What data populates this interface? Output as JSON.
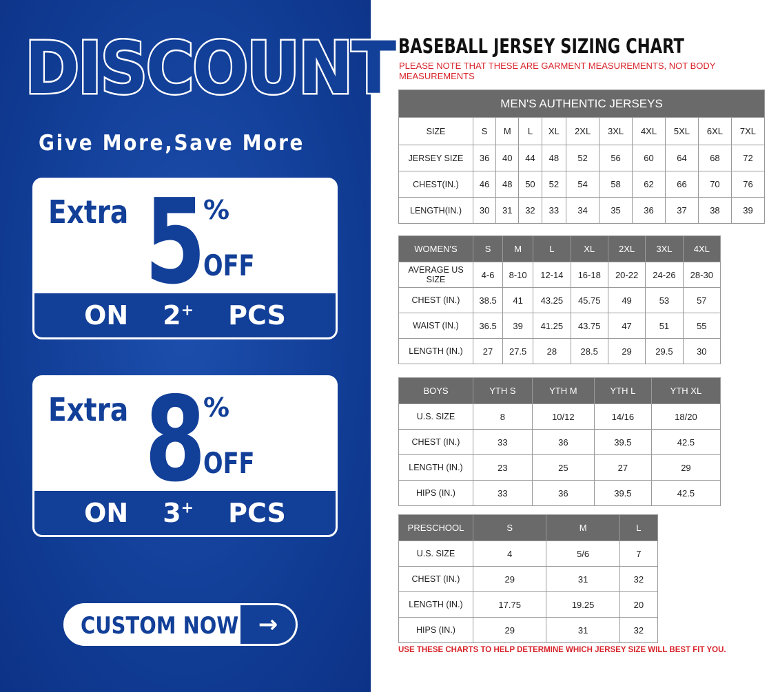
{
  "promo": {
    "headline": "DISCOUNT",
    "tagline": "Give More,Save More",
    "offers": [
      {
        "extra": "Extra",
        "percent": "5",
        "percent_sign": "%",
        "off": "OFF",
        "on": "ON",
        "qty": "2",
        "qty_sup": "+",
        "pcs": "PCS"
      },
      {
        "extra": "Extra",
        "percent": "8",
        "percent_sign": "%",
        "off": "OFF",
        "on": "ON",
        "qty": "3",
        "qty_sup": "+",
        "pcs": "PCS"
      }
    ],
    "cta_label": "CUSTOM NOW",
    "cta_arrow": "→",
    "colors": {
      "brand_blue": "#123f98",
      "header_gray": "#6a6a6a",
      "note_red": "#d8232a"
    }
  },
  "chart": {
    "title": "BASEBALL JERSEY SIZING CHART",
    "note": "PLEASE NOTE THAT THESE ARE GARMENT MEASUREMENTS, NOT BODY MEASUREMENTS",
    "footer": "USE THESE CHARTS TO HELP DETERMINE WHICH JERSEY SIZE WILL BEST FIT YOU.",
    "tables": [
      {
        "caption": "MEN'S AUTHENTIC JERSEYS",
        "header": [
          "SIZE",
          "S",
          "M",
          "L",
          "XL",
          "2XL",
          "3XL",
          "4XL",
          "5XL",
          "6XL",
          "7XL"
        ],
        "header_in_body": true,
        "rows": [
          [
            "JERSEY SIZE",
            "36",
            "40",
            "44",
            "48",
            "52",
            "56",
            "60",
            "64",
            "68",
            "72"
          ],
          [
            "CHEST(IN.)",
            "46",
            "48",
            "50",
            "52",
            "54",
            "58",
            "62",
            "66",
            "70",
            "76"
          ],
          [
            "LENGTH(IN.)",
            "30",
            "31",
            "32",
            "33",
            "34",
            "35",
            "36",
            "37",
            "38",
            "39"
          ]
        ]
      },
      {
        "header": [
          "WOMEN'S",
          "S",
          "M",
          "L",
          "XL",
          "2XL",
          "3XL",
          "4XL"
        ],
        "rows": [
          [
            "AVERAGE US SIZE",
            "4-6",
            "8-10",
            "12-14",
            "16-18",
            "20-22",
            "24-26",
            "28-30"
          ],
          [
            "CHEST (IN.)",
            "38.5",
            "41",
            "43.25",
            "45.75",
            "49",
            "53",
            "57"
          ],
          [
            "WAIST (IN.)",
            "36.5",
            "39",
            "41.25",
            "43.75",
            "47",
            "51",
            "55"
          ],
          [
            "LENGTH (IN.)",
            "27",
            "27.5",
            "28",
            "28.5",
            "29",
            "29.5",
            "30"
          ]
        ]
      },
      {
        "header": [
          "BOYS",
          "YTH S",
          "YTH M",
          "YTH L",
          "YTH XL"
        ],
        "rows": [
          [
            "U.S. SIZE",
            "8",
            "10/12",
            "14/16",
            "18/20"
          ],
          [
            "CHEST (IN.)",
            "33",
            "36",
            "39.5",
            "42.5"
          ],
          [
            "LENGTH (IN.)",
            "23",
            "25",
            "27",
            "29"
          ],
          [
            "HIPS (IN.)",
            "33",
            "36",
            "39.5",
            "42.5"
          ]
        ]
      },
      {
        "header": [
          "PRESCHOOL",
          "S",
          "M",
          "L"
        ],
        "rows": [
          [
            "U.S. SIZE",
            "4",
            "5/6",
            "7"
          ],
          [
            "CHEST (IN.)",
            "29",
            "31",
            "32"
          ],
          [
            "LENGTH (IN.)",
            "17.75",
            "19.25",
            "20"
          ],
          [
            "HIPS (IN.)",
            "29",
            "31",
            "32"
          ]
        ]
      }
    ]
  }
}
